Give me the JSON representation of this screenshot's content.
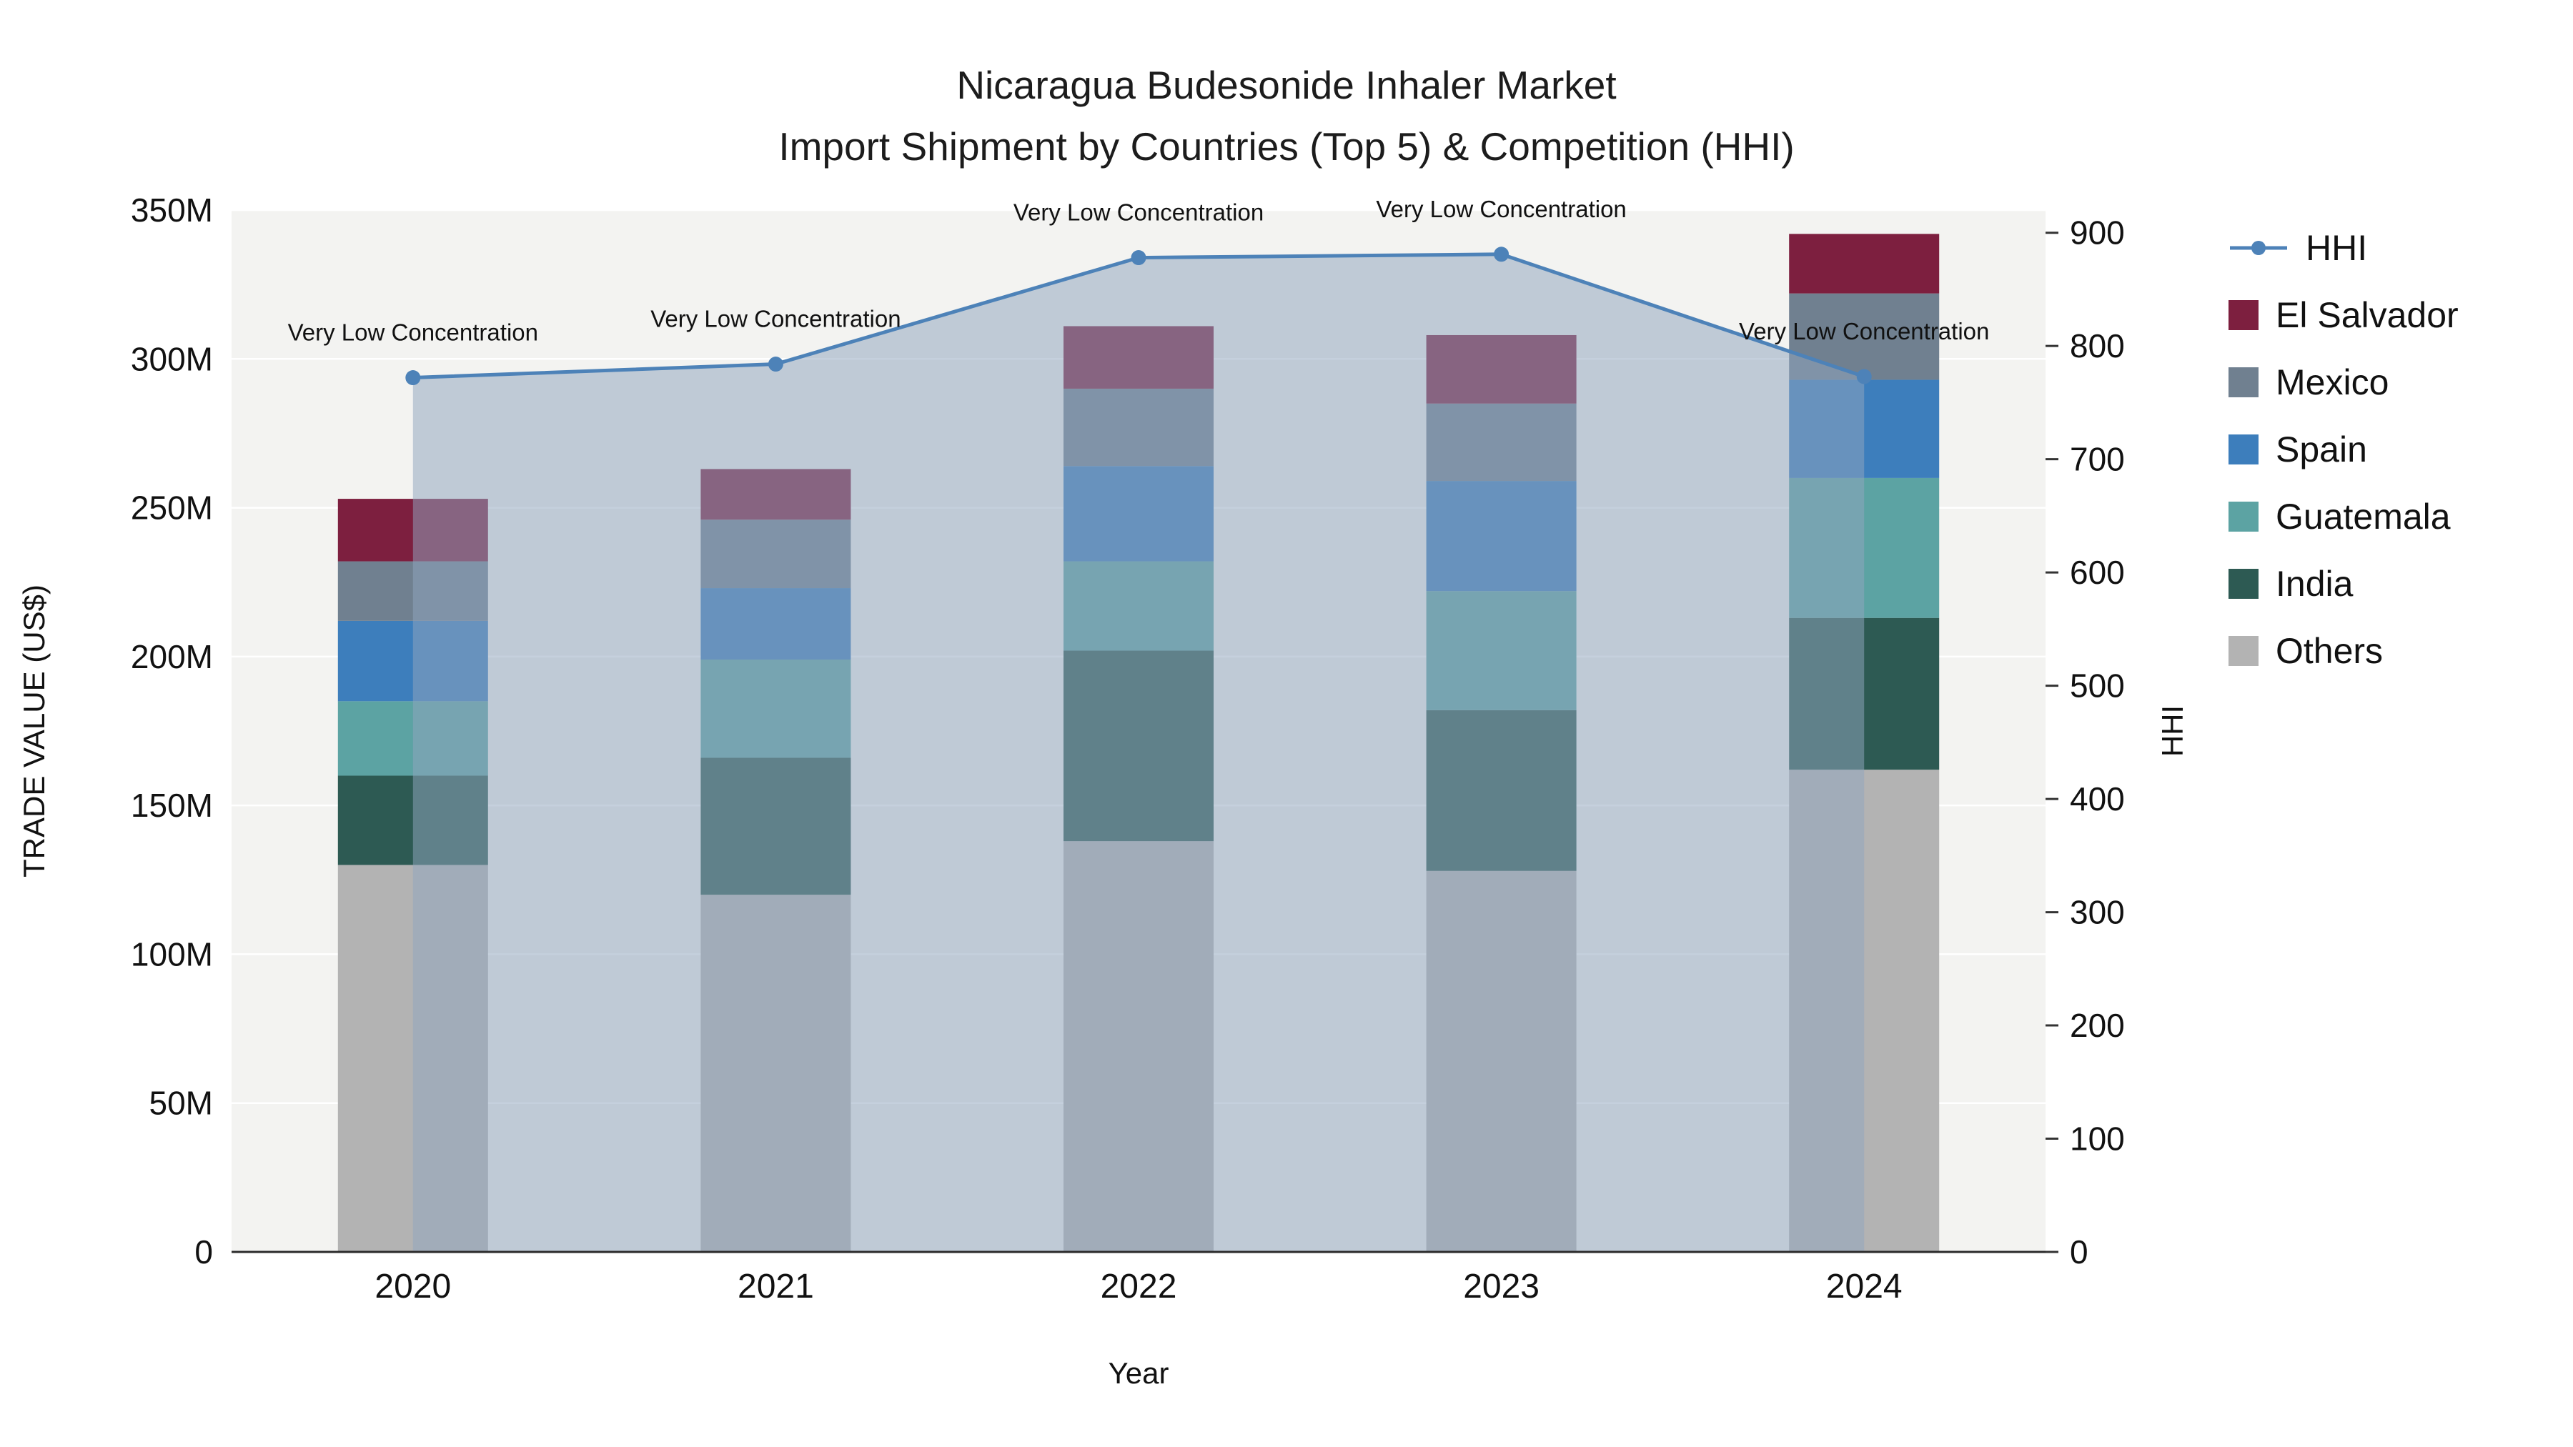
{
  "title": {
    "line1": "Nicaragua Budesonide Inhaler Market",
    "line2": "Import Shipment by Countries (Top 5) & Competition (HHI)"
  },
  "chart_data": {
    "type": "bar",
    "variant": "stacked-bars-with-line-area-overlay",
    "title": "Nicaragua Budesonide Inhaler Market — Import Shipment by Countries (Top 5) & Competition (HHI)",
    "categories": [
      "2020",
      "2021",
      "2022",
      "2023",
      "2024"
    ],
    "values_unit": "M US$",
    "series": [
      {
        "name": "Others",
        "color": "#b3b3b3",
        "values": [
          130,
          120,
          138,
          128,
          162
        ]
      },
      {
        "name": "India",
        "color": "#2d5a53",
        "values": [
          30,
          46,
          64,
          54,
          51
        ]
      },
      {
        "name": "Guatemala",
        "color": "#5ca3a3",
        "values": [
          25,
          33,
          30,
          40,
          47
        ]
      },
      {
        "name": "Spain",
        "color": "#3d7ebc",
        "values": [
          27,
          24,
          32,
          37,
          33
        ]
      },
      {
        "name": "Mexico",
        "color": "#708090",
        "values": [
          20,
          23,
          26,
          26,
          29
        ]
      },
      {
        "name": "El Salvador",
        "color": "#7d1f3f",
        "values": [
          21,
          17,
          21,
          23,
          20
        ]
      }
    ],
    "line_series": {
      "name": "HHI",
      "color": "#4d82b8",
      "area_fill": "#90a4be",
      "area_opacity": 0.52,
      "axis": "right",
      "values": [
        772,
        784,
        878,
        881,
        773
      ]
    },
    "annotations": [
      "Very Low Concentration",
      "Very Low Concentration",
      "Very Low Concentration",
      "Very Low Concentration",
      "Very Low Concentration"
    ],
    "xlabel": "Year",
    "ylabel_left": "TRADE VALUE (US$)",
    "ylabel_right": "HHI",
    "y_left": {
      "max": 350,
      "ticks": [
        0,
        50,
        100,
        150,
        200,
        250,
        300,
        350
      ],
      "labels": [
        "0",
        "50M",
        "100M",
        "150M",
        "200M",
        "250M",
        "300M",
        "350M"
      ]
    },
    "y_right": {
      "max": 920,
      "ticks": [
        0,
        100,
        200,
        300,
        400,
        500,
        600,
        700,
        800,
        900
      ],
      "labels": [
        "0",
        "100",
        "200",
        "300",
        "400",
        "500",
        "600",
        "700",
        "800",
        "900"
      ]
    },
    "grid": true,
    "legend_position": "right",
    "plot_background": "#f3f3f1"
  }
}
